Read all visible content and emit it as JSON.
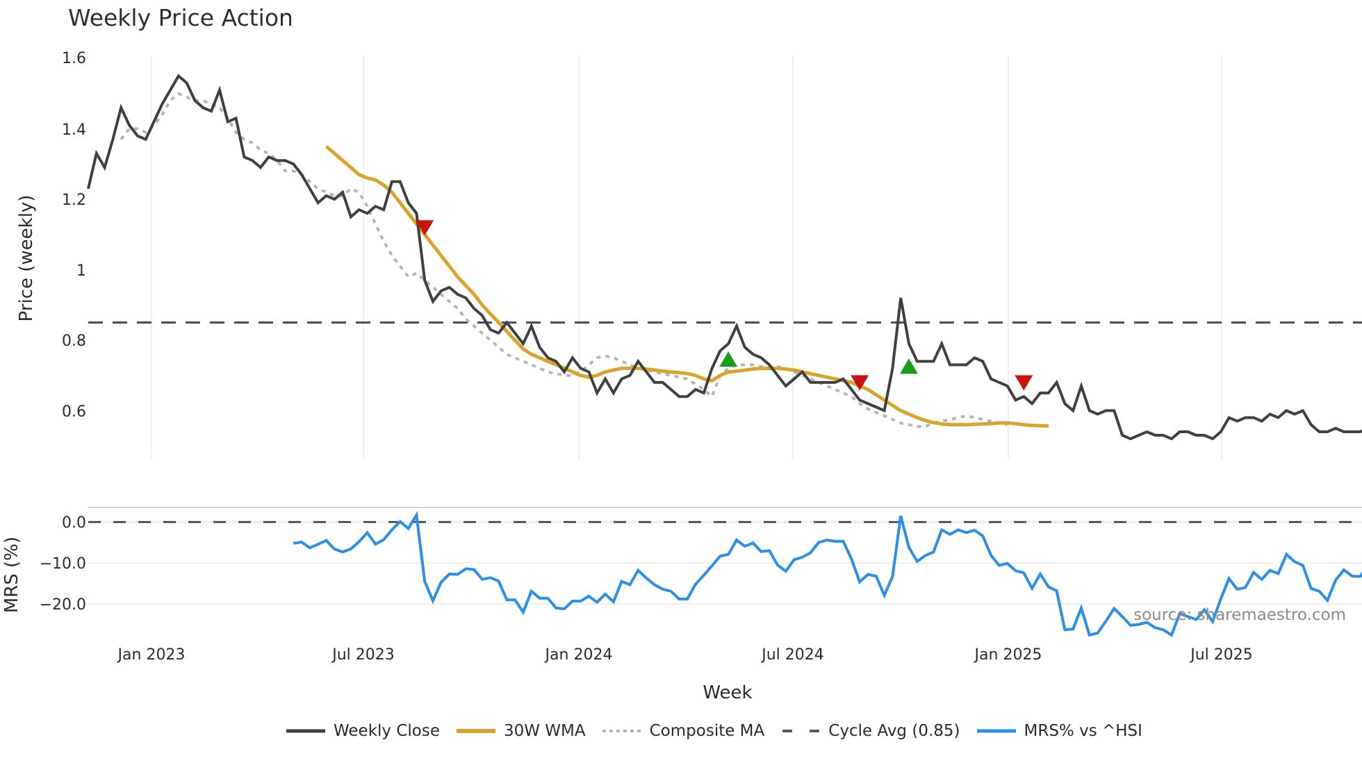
{
  "title": "Weekly Price Action",
  "watermark": "source: sharemaestro.com",
  "colors": {
    "weekly_close": "#404040",
    "wma": "#d9a42a",
    "composite_ma": "#b5b5b5",
    "cycle_avg": "#4a4a4a",
    "mrs": "#2b8ee8",
    "buy_marker": "#1a9e1a",
    "sell_marker": "#cc1111",
    "grid": "#eef0f3"
  },
  "legend": [
    {
      "key": "weekly_close",
      "label": "Weekly Close",
      "style": "solid"
    },
    {
      "key": "wma",
      "label": "30W WMA",
      "style": "solid"
    },
    {
      "key": "composite_ma",
      "label": "Composite MA",
      "style": "dotted"
    },
    {
      "key": "cycle_avg",
      "label": "Cycle Avg (0.85)",
      "style": "dashed"
    },
    {
      "key": "mrs",
      "label": "MRS% vs ^HSI",
      "style": "solid"
    }
  ],
  "chart_data": [
    {
      "type": "line",
      "title": "Weekly Price Action",
      "xlabel": "Week",
      "ylabel": "Price (weekly)",
      "ylim": [
        0.46,
        1.62
      ],
      "yticks": [
        0.6,
        0.8,
        1,
        1.2,
        1.4,
        1.6
      ],
      "ytick_labels": [
        "0.6",
        "0.8",
        "1",
        "1.2",
        "1.4",
        "1.6"
      ],
      "xticks": [
        "Jan 2023",
        "Jul 2023",
        "Jan 2024",
        "Jul 2024",
        "Jan 2025",
        "Jul 2025"
      ],
      "grid": "vertical",
      "start_week": "2022-11-11",
      "hline": {
        "label": "Cycle Avg (0.85)",
        "value": 0.85
      },
      "series": [
        {
          "name": "Weekly Close",
          "values": [
            1.23,
            1.33,
            1.29,
            1.37,
            1.46,
            1.41,
            1.38,
            1.37,
            1.42,
            1.47,
            1.51,
            1.55,
            1.53,
            1.48,
            1.46,
            1.45,
            1.51,
            1.42,
            1.43,
            1.32,
            1.31,
            1.29,
            1.32,
            1.31,
            1.31,
            1.3,
            1.27,
            1.23,
            1.19,
            1.21,
            1.2,
            1.22,
            1.15,
            1.17,
            1.16,
            1.18,
            1.17,
            1.25,
            1.25,
            1.19,
            1.16,
            0.97,
            0.91,
            0.94,
            0.95,
            0.93,
            0.92,
            0.89,
            0.87,
            0.83,
            0.82,
            0.85,
            0.82,
            0.79,
            0.84,
            0.78,
            0.75,
            0.74,
            0.71,
            0.75,
            0.72,
            0.71,
            0.65,
            0.69,
            0.65,
            0.69,
            0.7,
            0.74,
            0.71,
            0.68,
            0.68,
            0.66,
            0.64,
            0.64,
            0.66,
            0.65,
            0.72,
            0.77,
            0.79,
            0.84,
            0.78,
            0.76,
            0.75,
            0.73,
            0.7,
            0.67,
            0.69,
            0.71,
            0.68,
            0.68,
            0.68,
            0.68,
            0.69,
            0.66,
            0.63,
            0.62,
            0.61,
            0.6,
            0.72,
            0.92,
            0.79,
            0.74,
            0.74,
            0.74,
            0.79,
            0.73,
            0.73,
            0.73,
            0.75,
            0.74,
            0.69,
            0.68,
            0.67,
            0.63,
            0.64,
            0.62,
            0.65,
            0.65,
            0.68,
            0.62,
            0.6,
            0.67,
            0.6,
            0.59,
            0.6,
            0.6,
            0.53,
            0.52,
            0.53,
            0.54,
            0.53,
            0.53,
            0.52,
            0.54,
            0.54,
            0.53,
            0.53,
            0.52,
            0.54,
            0.58,
            0.57,
            0.58,
            0.58,
            0.57,
            0.59,
            0.58,
            0.6,
            0.59,
            0.6,
            0.56,
            0.54,
            0.54,
            0.55,
            0.54,
            0.54,
            0.54,
            0.55
          ]
        },
        {
          "name": "30W WMA",
          "start_index": 29,
          "values": [
            1.35,
            1.33,
            1.31,
            1.29,
            1.27,
            1.26,
            1.255,
            1.24,
            1.22,
            1.19,
            1.16,
            1.13,
            1.1,
            1.07,
            1.04,
            1.01,
            0.98,
            0.955,
            0.93,
            0.9,
            0.875,
            0.85,
            0.825,
            0.8,
            0.775,
            0.76,
            0.75,
            0.74,
            0.73,
            0.72,
            0.71,
            0.7,
            0.695,
            0.7,
            0.71,
            0.715,
            0.72,
            0.72,
            0.72,
            0.718,
            0.715,
            0.712,
            0.71,
            0.708,
            0.705,
            0.7,
            0.69,
            0.685,
            0.7,
            0.71,
            0.712,
            0.715,
            0.718,
            0.72,
            0.72,
            0.72,
            0.718,
            0.715,
            0.71,
            0.705,
            0.7,
            0.695,
            0.69,
            0.685,
            0.68,
            0.67,
            0.66,
            0.645,
            0.63,
            0.615,
            0.6,
            0.59,
            0.58,
            0.572,
            0.566,
            0.562,
            0.56,
            0.56,
            0.56,
            0.561,
            0.562,
            0.563,
            0.565,
            0.565,
            0.563,
            0.56,
            0.558,
            0.557,
            0.556
          ]
        },
        {
          "name": "Composite MA",
          "start_index": 4,
          "values": [
            1.37,
            1.4,
            1.4,
            1.39,
            1.41,
            1.44,
            1.48,
            1.5,
            1.49,
            1.48,
            1.48,
            1.47,
            1.46,
            1.43,
            1.39,
            1.37,
            1.36,
            1.34,
            1.33,
            1.31,
            1.28,
            1.28,
            1.27,
            1.25,
            1.23,
            1.22,
            1.21,
            1.21,
            1.23,
            1.22,
            1.18,
            1.13,
            1.08,
            1.04,
            1.01,
            0.98,
            0.99,
            0.97,
            0.95,
            0.93,
            0.91,
            0.89,
            0.86,
            0.84,
            0.82,
            0.8,
            0.78,
            0.76,
            0.75,
            0.74,
            0.73,
            0.72,
            0.71,
            0.705,
            0.7,
            0.7,
            0.71,
            0.73,
            0.75,
            0.755,
            0.75,
            0.74,
            0.73,
            0.72,
            0.715,
            0.71,
            0.705,
            0.7,
            0.695,
            0.69,
            0.675,
            0.66,
            0.64,
            0.7,
            0.72,
            0.73,
            0.73,
            0.73,
            0.725,
            0.725,
            0.725,
            0.72,
            0.71,
            0.7,
            0.69,
            0.68,
            0.67,
            0.66,
            0.65,
            0.64,
            0.62,
            0.605,
            0.595,
            0.585,
            0.575,
            0.565,
            0.56,
            0.555,
            0.555,
            0.565,
            0.57,
            0.575,
            0.58,
            0.585,
            0.58,
            0.575,
            0.57,
            0.565,
            0.56
          ]
        }
      ],
      "markers": [
        {
          "type": "sell",
          "shape": "triangle-down",
          "index": 41,
          "value": 1.12
        },
        {
          "type": "buy",
          "shape": "triangle-up",
          "index": 78,
          "value": 0.745
        },
        {
          "type": "sell",
          "shape": "triangle-down",
          "index": 94,
          "value": 0.68
        },
        {
          "type": "buy",
          "shape": "triangle-up",
          "index": 100,
          "value": 0.725
        },
        {
          "type": "sell",
          "shape": "triangle-down",
          "index": 114,
          "value": 0.68
        }
      ]
    },
    {
      "type": "line",
      "ylabel": "MRS (%)",
      "ylim": [
        -29,
        4
      ],
      "yticks": [
        0,
        -10,
        -20
      ],
      "ytick_labels": [
        "0.0",
        "−10.0",
        "−20.0"
      ],
      "hline": {
        "value": 0
      },
      "series": [
        {
          "name": "MRS% vs ^HSI",
          "start_index": 25,
          "values": [
            -5.2,
            -4.9,
            -6.3,
            -5.4,
            -4.5,
            -6.6,
            -7.3,
            -6.6,
            -4.8,
            -2.6,
            -5.4,
            -4.3,
            -1.9,
            0.1,
            -1.6,
            1.7,
            -14.5,
            -19.2,
            -14.7,
            -12.7,
            -12.8,
            -11.4,
            -11.6,
            -14.0,
            -13.6,
            -14.4,
            -19.0,
            -19.0,
            -22.0,
            -16.9,
            -18.6,
            -18.6,
            -21.0,
            -21.2,
            -19.3,
            -19.3,
            -18.1,
            -19.6,
            -17.6,
            -19.5,
            -14.5,
            -15.3,
            -11.8,
            -13.7,
            -15.3,
            -16.4,
            -16.9,
            -18.8,
            -18.8,
            -15.2,
            -13.0,
            -10.7,
            -8.3,
            -7.9,
            -4.4,
            -5.9,
            -5.1,
            -7.2,
            -7.0,
            -10.5,
            -12.0,
            -9.2,
            -8.6,
            -7.5,
            -5.0,
            -4.4,
            -4.7,
            -4.7,
            -9.0,
            -14.6,
            -12.8,
            -13.2,
            -17.9,
            -13.3,
            1.5,
            -6.2,
            -9.6,
            -8.2,
            -7.3,
            -1.9,
            -3.0,
            -1.9,
            -2.6,
            -2.0,
            -3.4,
            -8.1,
            -10.6,
            -10.1,
            -11.9,
            -12.4,
            -16.2,
            -12.7,
            -15.8,
            -16.8,
            -26.3,
            -26.1,
            -21.0,
            -27.6,
            -27.1,
            -24.2,
            -21.1,
            -23.1,
            -25.2,
            -25.0,
            -24.5,
            -25.8,
            -26.3,
            -27.6,
            -22.3,
            -23.1,
            -23.8,
            -21.4,
            -24.3,
            -18.8,
            -13.8,
            -16.4,
            -16.0,
            -12.3,
            -14.0,
            -11.8,
            -12.6,
            -7.9,
            -9.7,
            -10.6,
            -16.2,
            -16.9,
            -19.1,
            -14.2,
            -11.7,
            -13.2,
            -13.3,
            -10.0
          ]
        }
      ]
    }
  ],
  "axes": {
    "price_ylabel": "Price (weekly)",
    "mrs_ylabel": "MRS (%)",
    "xlabel": "Week",
    "price_yticks": [
      "1.6",
      "1.4",
      "1.2",
      "1",
      "0.8",
      "0.6"
    ],
    "mrs_yticks": [
      "0.0",
      "−10.0",
      "−20.0"
    ],
    "xticks": [
      "Jan 2023",
      "Jul 2023",
      "Jan 2024",
      "Jul 2024",
      "Jan 2025",
      "Jul 2025"
    ]
  }
}
